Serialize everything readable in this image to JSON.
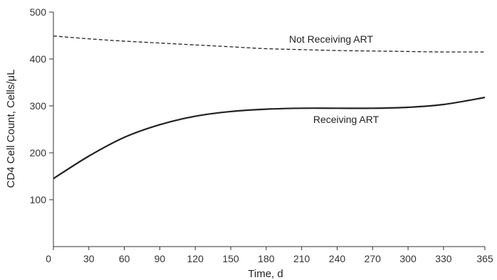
{
  "chart_data": {
    "type": "line",
    "xlabel": "Time, d",
    "ylabel": "CD4 Cell Count, Cells/μL",
    "xlim": [
      0,
      365
    ],
    "ylim": [
      0,
      500
    ],
    "x_ticks": [
      0,
      30,
      60,
      90,
      120,
      150,
      180,
      210,
      240,
      270,
      300,
      330,
      365
    ],
    "y_ticks": [
      100,
      200,
      300,
      400,
      500
    ],
    "grid": false,
    "legend": "none",
    "series": [
      {
        "name": "Not Receiving ART",
        "style": "dashed",
        "color": "#222222",
        "x": [
          0,
          30,
          60,
          90,
          120,
          150,
          180,
          210,
          240,
          270,
          300,
          330,
          365
        ],
        "y": [
          449,
          443,
          438,
          434,
          430,
          426,
          422,
          420,
          418,
          417,
          416,
          415,
          415
        ]
      },
      {
        "name": "Receiving ART",
        "style": "solid",
        "color": "#222222",
        "x": [
          0,
          30,
          60,
          90,
          120,
          150,
          180,
          210,
          240,
          270,
          300,
          330,
          365
        ],
        "y": [
          145,
          193,
          233,
          260,
          278,
          288,
          293,
          295,
          295,
          295,
          297,
          303,
          318
        ]
      }
    ]
  }
}
